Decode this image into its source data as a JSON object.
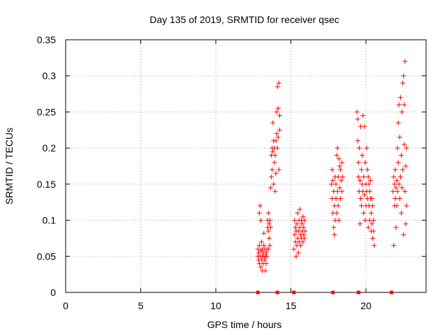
{
  "chart_data": {
    "type": "scatter",
    "title": "Day 135 of 2019, SRMTID for receiver qsec",
    "xlabel": "GPS time / hours",
    "ylabel": "SRMTID / TECUs",
    "xlim": [
      0,
      24
    ],
    "ylim": [
      0,
      0.35
    ],
    "xticks": [
      0,
      5,
      10,
      15,
      20
    ],
    "yticks": [
      0,
      0.05,
      0.1,
      0.15,
      0.2,
      0.25,
      0.3,
      0.35
    ],
    "xtick_labels": [
      "0",
      "5",
      "10",
      "15",
      "20"
    ],
    "ytick_labels": [
      "0",
      "0.05",
      "0.1",
      "0.15",
      "0.2",
      "0.25",
      "0.3",
      "0.35"
    ],
    "grid": true,
    "marker": "+",
    "color": "#ff0000",
    "zero_markers_x": [
      12.8,
      14.1,
      15.2,
      17.8,
      19.5,
      21.7
    ],
    "series": [
      {
        "name": "SRMTID",
        "points": [
          [
            12.8,
            0.05
          ],
          [
            12.8,
            0.06
          ],
          [
            12.85,
            0.045
          ],
          [
            12.85,
            0.055
          ],
          [
            12.9,
            0.04
          ],
          [
            12.9,
            0.065
          ],
          [
            12.9,
            0.11
          ],
          [
            12.95,
            0.12
          ],
          [
            12.95,
            0.05
          ],
          [
            13.0,
            0.035
          ],
          [
            13.0,
            0.058
          ],
          [
            13.0,
            0.1
          ],
          [
            13.05,
            0.07
          ],
          [
            13.05,
            0.045
          ],
          [
            13.1,
            0.05
          ],
          [
            13.1,
            0.06
          ],
          [
            13.1,
            0.03
          ],
          [
            13.15,
            0.055
          ],
          [
            13.15,
            0.04
          ],
          [
            13.2,
            0.05
          ],
          [
            13.2,
            0.065
          ],
          [
            13.2,
            0.082
          ],
          [
            13.25,
            0.045
          ],
          [
            13.25,
            0.06
          ],
          [
            13.3,
            0.05
          ],
          [
            13.3,
            0.03
          ],
          [
            13.35,
            0.055
          ],
          [
            13.35,
            0.04
          ],
          [
            13.4,
            0.06
          ],
          [
            13.4,
            0.05
          ],
          [
            13.45,
            0.09
          ],
          [
            13.45,
            0.1
          ],
          [
            13.5,
            0.085
          ],
          [
            13.5,
            0.06
          ],
          [
            13.5,
            0.11
          ],
          [
            13.55,
            0.095
          ],
          [
            13.55,
            0.075
          ],
          [
            13.6,
            0.1
          ],
          [
            13.6,
            0.065
          ],
          [
            13.65,
            0.09
          ],
          [
            13.65,
            0.145
          ],
          [
            13.7,
            0.16
          ],
          [
            13.7,
            0.19
          ],
          [
            13.75,
            0.2
          ],
          [
            13.75,
            0.17
          ],
          [
            13.8,
            0.235
          ],
          [
            13.8,
            0.195
          ],
          [
            13.85,
            0.21
          ],
          [
            13.85,
            0.15
          ],
          [
            13.9,
            0.18
          ],
          [
            13.9,
            0.2
          ],
          [
            13.95,
            0.14
          ],
          [
            13.95,
            0.19
          ],
          [
            14.0,
            0.165
          ],
          [
            14.0,
            0.21
          ],
          [
            14.05,
            0.25
          ],
          [
            14.05,
            0.22
          ],
          [
            14.1,
            0.285
          ],
          [
            14.1,
            0.2
          ],
          [
            14.15,
            0.255
          ],
          [
            14.15,
            0.215
          ],
          [
            14.2,
            0.29
          ],
          [
            14.2,
            0.17
          ],
          [
            14.25,
            0.245
          ],
          [
            14.25,
            0.225
          ],
          [
            15.2,
            0.06
          ],
          [
            15.25,
            0.08
          ],
          [
            15.25,
            0.1
          ],
          [
            15.3,
            0.07
          ],
          [
            15.3,
            0.09
          ],
          [
            15.35,
            0.05
          ],
          [
            15.35,
            0.085
          ],
          [
            15.4,
            0.065
          ],
          [
            15.4,
            0.095
          ],
          [
            15.45,
            0.11
          ],
          [
            15.45,
            0.075
          ],
          [
            15.5,
            0.055
          ],
          [
            15.5,
            0.085
          ],
          [
            15.55,
            0.1
          ],
          [
            15.55,
            0.07
          ],
          [
            15.6,
            0.115
          ],
          [
            15.6,
            0.09
          ],
          [
            15.65,
            0.08
          ],
          [
            15.65,
            0.065
          ],
          [
            15.7,
            0.1
          ],
          [
            15.7,
            0.075
          ],
          [
            15.75,
            0.085
          ],
          [
            15.75,
            0.095
          ],
          [
            15.8,
            0.07
          ],
          [
            15.8,
            0.105
          ],
          [
            15.85,
            0.08
          ],
          [
            15.85,
            0.09
          ],
          [
            15.9,
            0.075
          ],
          [
            15.9,
            0.1
          ],
          [
            15.95,
            0.085
          ],
          [
            17.7,
            0.15
          ],
          [
            17.75,
            0.13
          ],
          [
            17.75,
            0.17
          ],
          [
            17.8,
            0.155
          ],
          [
            17.8,
            0.11
          ],
          [
            17.85,
            0.09
          ],
          [
            17.85,
            0.14
          ],
          [
            17.9,
            0.08
          ],
          [
            17.9,
            0.12
          ],
          [
            17.95,
            0.16
          ],
          [
            17.95,
            0.1
          ],
          [
            18.0,
            0.13
          ],
          [
            18.0,
            0.15
          ],
          [
            18.05,
            0.19
          ],
          [
            18.05,
            0.11
          ],
          [
            18.1,
            0.2
          ],
          [
            18.1,
            0.14
          ],
          [
            18.15,
            0.16
          ],
          [
            18.15,
            0.12
          ],
          [
            18.2,
            0.185
          ],
          [
            18.2,
            0.1
          ],
          [
            18.25,
            0.175
          ],
          [
            18.25,
            0.145
          ],
          [
            18.3,
            0.17
          ],
          [
            18.3,
            0.13
          ],
          [
            18.35,
            0.155
          ],
          [
            18.4,
            0.18
          ],
          [
            18.4,
            0.14
          ],
          [
            18.45,
            0.16
          ],
          [
            19.4,
            0.25
          ],
          [
            19.45,
            0.21
          ],
          [
            19.45,
            0.24
          ],
          [
            19.5,
            0.16
          ],
          [
            19.5,
            0.18
          ],
          [
            19.55,
            0.14
          ],
          [
            19.55,
            0.2
          ],
          [
            19.6,
            0.155
          ],
          [
            19.6,
            0.095
          ],
          [
            19.65,
            0.23
          ],
          [
            19.65,
            0.13
          ],
          [
            19.7,
            0.17
          ],
          [
            19.7,
            0.12
          ],
          [
            19.75,
            0.15
          ],
          [
            19.75,
            0.19
          ],
          [
            19.8,
            0.245
          ],
          [
            19.8,
            0.14
          ],
          [
            19.85,
            0.16
          ],
          [
            19.85,
            0.11
          ],
          [
            19.9,
            0.23
          ],
          [
            19.9,
            0.135
          ],
          [
            19.95,
            0.18
          ],
          [
            19.95,
            0.1
          ],
          [
            20.0,
            0.15
          ],
          [
            20.0,
            0.12
          ],
          [
            20.05,
            0.2
          ],
          [
            20.05,
            0.14
          ],
          [
            20.1,
            0.17
          ],
          [
            20.1,
            0.13
          ],
          [
            20.15,
            0.16
          ],
          [
            20.15,
            0.09
          ],
          [
            20.2,
            0.15
          ],
          [
            20.2,
            0.12
          ],
          [
            20.25,
            0.14
          ],
          [
            20.25,
            0.1
          ],
          [
            20.3,
            0.13
          ],
          [
            20.3,
            0.155
          ],
          [
            20.35,
            0.11
          ],
          [
            20.35,
            0.085
          ],
          [
            20.4,
            0.13
          ],
          [
            20.4,
            0.095
          ],
          [
            20.45,
            0.075
          ],
          [
            20.45,
            0.12
          ],
          [
            20.5,
            0.1
          ],
          [
            20.5,
            0.085
          ],
          [
            20.55,
            0.065
          ],
          [
            21.8,
            0.14
          ],
          [
            21.85,
            0.065
          ],
          [
            21.85,
            0.16
          ],
          [
            21.9,
            0.12
          ],
          [
            21.9,
            0.15
          ],
          [
            21.95,
            0.13
          ],
          [
            21.95,
            0.17
          ],
          [
            22.0,
            0.145
          ],
          [
            22.0,
            0.09
          ],
          [
            22.05,
            0.155
          ],
          [
            22.05,
            0.12
          ],
          [
            22.1,
            0.2
          ],
          [
            22.1,
            0.14
          ],
          [
            22.15,
            0.235
          ],
          [
            22.15,
            0.18
          ],
          [
            22.2,
            0.26
          ],
          [
            22.2,
            0.15
          ],
          [
            22.25,
            0.215
          ],
          [
            22.25,
            0.13
          ],
          [
            22.3,
            0.27
          ],
          [
            22.3,
            0.16
          ],
          [
            22.35,
            0.19
          ],
          [
            22.35,
            0.11
          ],
          [
            22.4,
            0.25
          ],
          [
            22.4,
            0.145
          ],
          [
            22.45,
            0.29
          ],
          [
            22.45,
            0.17
          ],
          [
            22.5,
            0.3
          ],
          [
            22.5,
            0.08
          ],
          [
            22.55,
            0.26
          ],
          [
            22.55,
            0.205
          ],
          [
            22.6,
            0.32
          ],
          [
            22.6,
            0.14
          ],
          [
            22.65,
            0.175
          ],
          [
            22.65,
            0.095
          ],
          [
            22.7,
            0.2
          ],
          [
            22.7,
            0.12
          ]
        ]
      }
    ]
  }
}
